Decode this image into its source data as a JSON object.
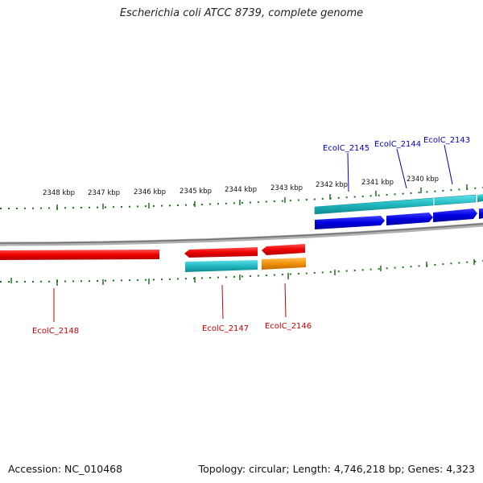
{
  "title": "Escherichia coli ATCC 8739, complete genome",
  "footer": {
    "accession": "Accession: NC_010468",
    "topology": "Topology: circular; Length: 4,746,218 bp; Genes: 4,323"
  },
  "scale_labels": [
    "2348 kbp",
    "2347 kbp",
    "2346 kbp",
    "2345 kbp",
    "2344 kbp",
    "2343 kbp",
    "2342 kbp",
    "2341 kbp",
    "2340 kbp"
  ],
  "gene_labels": {
    "forward": [
      "EcolC_2145",
      "EcolC_2144",
      "EcolC_2143"
    ],
    "reverse": [
      "EcolC_2148",
      "EcolC_2147",
      "EcolC_2146"
    ]
  },
  "colors": {
    "forward_gene": "#0000e0",
    "reverse_gene": "#ee0000",
    "cds_teal": "#20b8c0",
    "rna_orange": "#f0900a",
    "backbone": "#808080",
    "ticks": "#207020"
  }
}
